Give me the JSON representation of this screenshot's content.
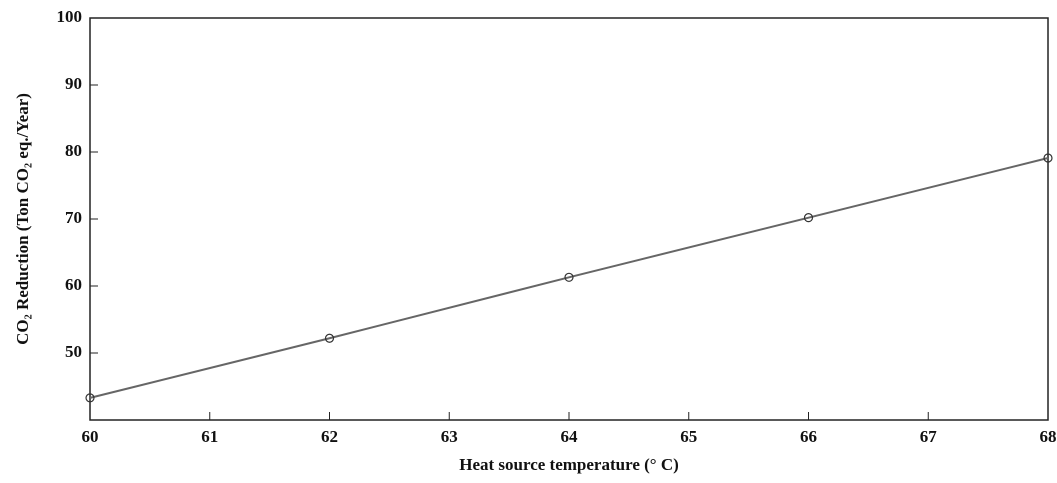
{
  "chart_data": {
    "type": "line",
    "x_label": "Heat source temperature (° C)",
    "y_label": "CO₂ Reduction (Ton CO₂ eq./Year)",
    "x": [
      60,
      62,
      64,
      66,
      68
    ],
    "series": [
      {
        "color": "#666666",
        "values": [
          43.3,
          52.2,
          61.3,
          70.2,
          79.1
        ]
      }
    ],
    "xlim": [
      60,
      68
    ],
    "xticks": [
      60,
      61,
      62,
      63,
      64,
      65,
      66,
      67,
      68
    ],
    "ylim": [
      40,
      100
    ],
    "yticks": [
      50,
      60,
      70,
      80,
      90,
      100
    ],
    "grid": false
  }
}
